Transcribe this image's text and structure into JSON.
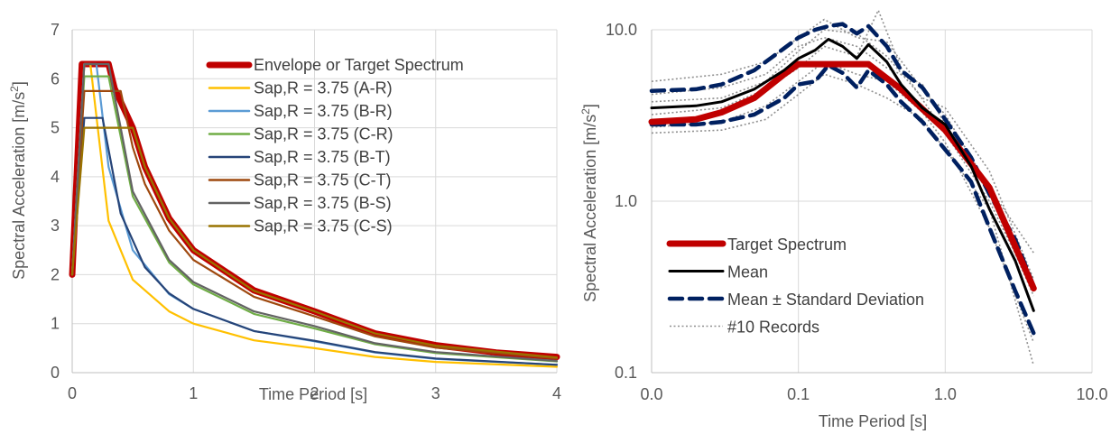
{
  "chart_data": [
    {
      "type": "line",
      "xlabel": "Time Period [s]",
      "ylabel": "Spectral Acceleration [m/s²]",
      "ylabel_parts": {
        "main": "Spectral Acceleration [m/s",
        "sup": "2",
        "end": "]"
      },
      "xlim": [
        0,
        4
      ],
      "ylim": [
        0,
        7
      ],
      "xticks": [
        "0",
        "1",
        "2",
        "3",
        "4"
      ],
      "yticks": [
        "0",
        "1",
        "2",
        "3",
        "4",
        "5",
        "6",
        "7"
      ],
      "grid": true,
      "legend_position": "top-right",
      "series": [
        {
          "name": "Envelope or Target Spectrum",
          "color": "#C00000",
          "x": [
            0,
            0.08,
            0.1,
            0.3,
            0.35,
            0.5,
            0.6,
            0.8,
            1.0,
            1.5,
            2.0,
            2.5,
            3.0,
            3.5,
            4.0
          ],
          "y": [
            2.0,
            6.3,
            6.3,
            6.3,
            5.8,
            5.0,
            4.2,
            3.15,
            2.5,
            1.68,
            1.25,
            0.8,
            0.56,
            0.41,
            0.32
          ]
        },
        {
          "name": "Sap,R = 3.75 (A-R)",
          "color": "#FFC000",
          "x": [
            0,
            0.1,
            0.15,
            0.3,
            0.5,
            0.8,
            1.0,
            1.5,
            2.0,
            2.5,
            3.0,
            4.0
          ],
          "y": [
            2.0,
            6.3,
            6.3,
            3.1,
            1.9,
            1.25,
            1.0,
            0.66,
            0.5,
            0.32,
            0.22,
            0.12
          ]
        },
        {
          "name": "Sap,R = 3.75 (B-R)",
          "color": "#5B9BD5",
          "x": [
            0,
            0.1,
            0.2,
            0.3,
            0.5,
            0.8,
            1.0,
            1.5,
            2.0,
            2.5,
            3.0,
            4.0
          ],
          "y": [
            2.0,
            6.3,
            6.3,
            4.2,
            2.5,
            1.6,
            1.3,
            0.85,
            0.64,
            0.41,
            0.28,
            0.16
          ]
        },
        {
          "name": "Sap,R = 3.75 (C-R)",
          "color": "#70AD47",
          "x": [
            0,
            0.1,
            0.3,
            0.5,
            0.8,
            1.0,
            1.5,
            2.0,
            2.5,
            3.0,
            4.0
          ],
          "y": [
            2.0,
            6.05,
            6.05,
            3.6,
            2.25,
            1.8,
            1.2,
            0.9,
            0.58,
            0.4,
            0.23
          ]
        },
        {
          "name": "Sap,R = 3.75 (B-T)",
          "color": "#264478",
          "x": [
            0,
            0.1,
            0.25,
            0.4,
            0.6,
            0.8,
            1.0,
            1.5,
            2.0,
            2.5,
            3.0,
            4.0
          ],
          "y": [
            2.0,
            5.2,
            5.2,
            3.25,
            2.15,
            1.62,
            1.3,
            0.85,
            0.65,
            0.42,
            0.29,
            0.16
          ]
        },
        {
          "name": "Sap,R = 3.75 (C-T)",
          "color": "#9E480E",
          "x": [
            0,
            0.1,
            0.4,
            0.5,
            0.6,
            0.8,
            1.0,
            1.5,
            2.0,
            2.5,
            3.0,
            4.0
          ],
          "y": [
            2.0,
            5.75,
            5.75,
            4.6,
            3.85,
            2.9,
            2.3,
            1.55,
            1.15,
            0.74,
            0.51,
            0.29
          ]
        },
        {
          "name": "Sap,R = 3.75 (B-S)",
          "color": "#636363",
          "x": [
            0,
            0.1,
            0.3,
            0.5,
            0.8,
            1.0,
            1.5,
            2.0,
            2.5,
            3.0,
            4.0
          ],
          "y": [
            2.0,
            6.3,
            6.3,
            3.7,
            2.3,
            1.85,
            1.25,
            0.95,
            0.6,
            0.42,
            0.24
          ]
        },
        {
          "name": "Sap,R = 3.75 (C-S)",
          "color": "#997300",
          "x": [
            0,
            0.1,
            0.5,
            0.6,
            0.8,
            1.0,
            1.5,
            2.0,
            2.5,
            3.0,
            4.0
          ],
          "y": [
            2.0,
            5.0,
            5.0,
            4.2,
            3.15,
            2.5,
            1.67,
            1.25,
            0.8,
            0.55,
            0.31
          ]
        }
      ]
    },
    {
      "type": "line",
      "xscale": "log",
      "yscale": "log",
      "xlabel": "Time Period [s]",
      "ylabel": "Spectral Acceleration [m/s²]",
      "ylabel_parts": {
        "main": "Spectral Acceleration [m/s",
        "sup": "2",
        "end": "]"
      },
      "xlim": [
        0.01,
        10
      ],
      "ylim": [
        0.1,
        10
      ],
      "xticks": [
        "0.0",
        "0.1",
        "1.0",
        "10.0"
      ],
      "yticks": [
        "0.1",
        "1.0",
        "10.0"
      ],
      "grid": true,
      "legend_position": "bottom-left",
      "series": [
        {
          "name": "Target Spectrum",
          "color": "#C00000",
          "style": "solid-thick",
          "x": [
            0.01,
            0.02,
            0.03,
            0.05,
            0.08,
            0.1,
            0.3,
            0.5,
            1.0,
            2.0,
            4.0
          ],
          "y": [
            2.9,
            3.0,
            3.3,
            4.0,
            5.5,
            6.3,
            6.3,
            4.5,
            2.6,
            1.2,
            0.31
          ]
        },
        {
          "name": "Mean",
          "color": "#000000",
          "style": "solid",
          "x": [
            0.01,
            0.02,
            0.03,
            0.05,
            0.08,
            0.1,
            0.13,
            0.16,
            0.2,
            0.25,
            0.3,
            0.4,
            0.5,
            0.7,
            1.0,
            1.5,
            2.0,
            3.0,
            4.0
          ],
          "y": [
            3.5,
            3.6,
            3.8,
            4.5,
            5.8,
            6.8,
            7.6,
            8.8,
            8.0,
            6.8,
            8.2,
            6.5,
            4.8,
            3.5,
            2.8,
            1.6,
            0.9,
            0.45,
            0.23
          ]
        },
        {
          "name": "Mean ± Standard Deviation",
          "color": "#002060",
          "style": "dashed",
          "x": [
            0.01,
            0.02,
            0.03,
            0.05,
            0.08,
            0.1,
            0.13,
            0.16,
            0.2,
            0.25,
            0.3,
            0.4,
            0.5,
            0.7,
            1.0,
            1.5,
            2.0,
            3.0,
            4.0
          ],
          "y": [
            4.4,
            4.5,
            4.8,
            5.8,
            7.8,
            9.0,
            10.0,
            10.5,
            10.8,
            9.5,
            10.5,
            8.0,
            5.8,
            4.6,
            3.0,
            1.8,
            1.1,
            0.6,
            0.32
          ]
        },
        {
          "name": "",
          "color": "#002060",
          "style": "dashed",
          "x": [
            0.01,
            0.02,
            0.03,
            0.05,
            0.08,
            0.1,
            0.13,
            0.16,
            0.2,
            0.25,
            0.3,
            0.4,
            0.5,
            0.7,
            1.0,
            1.5,
            2.0,
            3.0,
            4.0
          ],
          "y": [
            2.8,
            2.8,
            2.9,
            3.2,
            4.0,
            4.8,
            5.0,
            6.2,
            5.6,
            4.6,
            5.8,
            4.8,
            3.8,
            2.9,
            2.0,
            1.3,
            0.7,
            0.3,
            0.17
          ]
        },
        {
          "name": "#10 Records",
          "color": "#909090",
          "style": "dotted",
          "x": [
            0.01,
            0.03,
            0.06,
            0.1,
            0.15,
            0.25,
            0.4,
            0.7,
            1.0,
            2.0,
            4.0
          ],
          "y": [
            5.0,
            5.5,
            6.5,
            9.0,
            11.5,
            9.0,
            8.5,
            4.5,
            3.2,
            1.2,
            0.5
          ]
        },
        {
          "name": "",
          "color": "#909090",
          "style": "dotted",
          "x": [
            0.01,
            0.03,
            0.06,
            0.1,
            0.15,
            0.25,
            0.4,
            0.7,
            1.0,
            2.0,
            4.0
          ],
          "y": [
            2.5,
            2.6,
            3.0,
            4.2,
            5.5,
            4.8,
            4.0,
            3.0,
            2.0,
            0.9,
            0.11
          ]
        },
        {
          "name": "",
          "color": "#909090",
          "style": "dotted",
          "x": [
            0.01,
            0.03,
            0.06,
            0.1,
            0.15,
            0.25,
            0.35,
            0.5,
            1.0,
            2.0,
            4.0
          ],
          "y": [
            3.2,
            3.5,
            4.5,
            6.0,
            8.0,
            7.0,
            13.0,
            6.0,
            2.5,
            1.0,
            0.3
          ]
        },
        {
          "name": "",
          "color": "#909090",
          "style": "dotted",
          "x": [
            0.01,
            0.03,
            0.06,
            0.1,
            0.15,
            0.25,
            0.4,
            0.7,
            1.0,
            2.0,
            4.0
          ],
          "y": [
            3.8,
            4.0,
            5.0,
            7.5,
            10.0,
            9.5,
            7.0,
            4.0,
            3.5,
            1.5,
            0.35
          ]
        },
        {
          "name": "",
          "color": "#909090",
          "style": "dotted",
          "x": [
            0.01,
            0.03,
            0.06,
            0.1,
            0.15,
            0.25,
            0.4,
            0.7,
            1.0,
            2.0,
            4.0
          ],
          "y": [
            2.7,
            2.9,
            3.6,
            5.0,
            6.5,
            5.5,
            5.0,
            3.3,
            2.2,
            0.7,
            0.15
          ]
        },
        {
          "name": "",
          "color": "#909090",
          "style": "dotted",
          "x": [
            0.01,
            0.03,
            0.06,
            0.1,
            0.15,
            0.25,
            0.4,
            0.7,
            1.0,
            2.0,
            4.0
          ],
          "y": [
            4.2,
            4.6,
            5.5,
            8.0,
            9.0,
            8.0,
            6.0,
            4.8,
            2.8,
            1.1,
            0.28
          ]
        }
      ]
    }
  ]
}
